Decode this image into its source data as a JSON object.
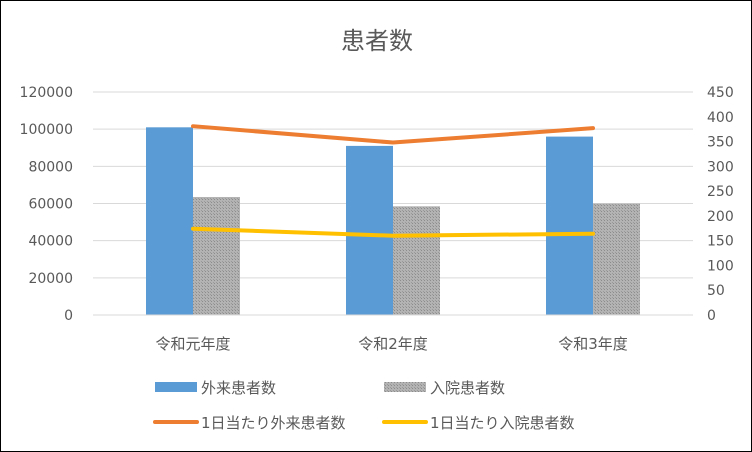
{
  "chart_data": {
    "type": "bar",
    "title": "患者数",
    "categories": [
      "令和元年度",
      "令和2年度",
      "令和3年度"
    ],
    "y_left": {
      "min": 0,
      "max": 120000,
      "ticks": [
        "0",
        "20000",
        "40000",
        "60000",
        "80000",
        "100000",
        "120000"
      ]
    },
    "y_right": {
      "min": 0,
      "max": 450,
      "ticks": [
        "0",
        "50",
        "100",
        "150",
        "200",
        "250",
        "300",
        "350",
        "400",
        "450"
      ]
    },
    "bar_series": [
      {
        "name": "外来患者数",
        "color": "#5b9bd5",
        "pattern": "solid",
        "axis": "left",
        "values": [
          101000,
          91000,
          96000
        ]
      },
      {
        "name": "入院患者数",
        "color": "#a5a5a5",
        "pattern": "dotted-gray",
        "axis": "left",
        "values": [
          63500,
          58500,
          60000
        ]
      }
    ],
    "line_series": [
      {
        "name": "1日当たり外来患者数",
        "color": "#ed7d31",
        "axis": "right",
        "values": [
          381,
          348,
          377
        ]
      },
      {
        "name": "1日当たり入院患者数",
        "color": "#ffc000",
        "axis": "right",
        "values": [
          174,
          160,
          164
        ]
      }
    ],
    "grid": true,
    "legend_position": "bottom"
  }
}
